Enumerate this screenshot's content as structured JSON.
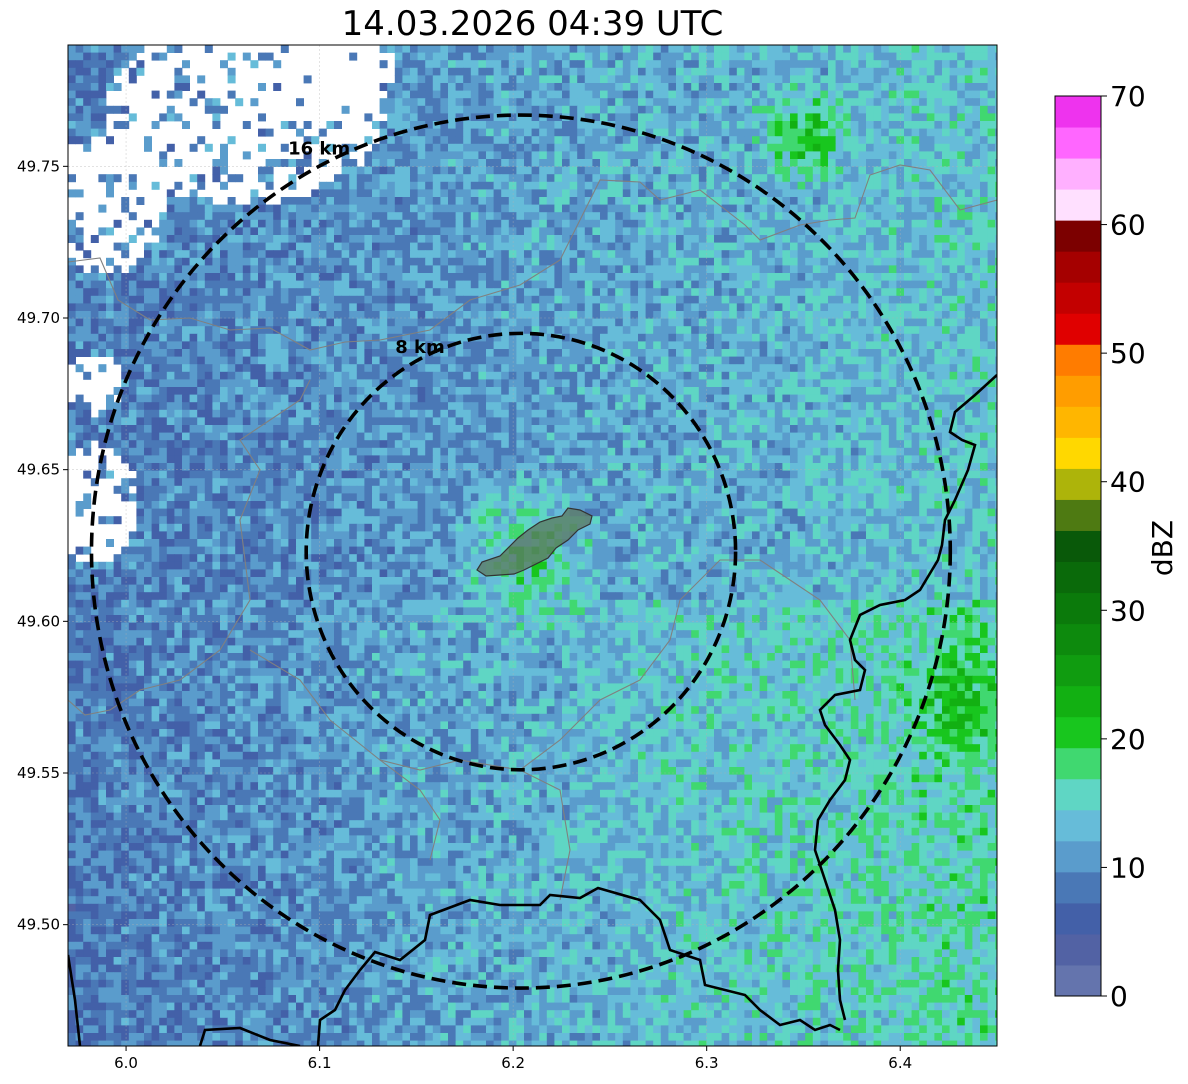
{
  "title": "14.03.2026 04:39 UTC",
  "map": {
    "lon_range": [
      5.97,
      6.45
    ],
    "lat_range": [
      49.46,
      49.79
    ],
    "x_ticks": [
      {
        "value": 6.0,
        "label": "6.0"
      },
      {
        "value": 6.1,
        "label": "6.1"
      },
      {
        "value": 6.2,
        "label": "6.2"
      },
      {
        "value": 6.3,
        "label": "6.3"
      },
      {
        "value": 6.4,
        "label": "6.4"
      }
    ],
    "y_ticks": [
      {
        "value": 49.5,
        "label": "49.50"
      },
      {
        "value": 49.55,
        "label": "49.55"
      },
      {
        "value": 49.6,
        "label": "49.60"
      },
      {
        "value": 49.65,
        "label": "49.65"
      },
      {
        "value": 49.7,
        "label": "49.70"
      },
      {
        "value": 49.75,
        "label": "49.75"
      }
    ],
    "grid": true,
    "center": {
      "lon": 6.204,
      "lat": 49.623
    },
    "rings": [
      {
        "radius_km": 8,
        "label": "8 km"
      },
      {
        "radius_km": 16,
        "label": "16 km"
      }
    ]
  },
  "colorbar": {
    "label": "dBZ",
    "min": 0,
    "max": 70,
    "tick_labels": [
      {
        "value": 0,
        "label": "0"
      },
      {
        "value": 10,
        "label": "10"
      },
      {
        "value": 20,
        "label": "20"
      },
      {
        "value": 30,
        "label": "30"
      },
      {
        "value": 40,
        "label": "40"
      },
      {
        "value": 50,
        "label": "50"
      },
      {
        "value": 60,
        "label": "60"
      },
      {
        "value": 70,
        "label": "70"
      }
    ],
    "colors": [
      "#6474ad",
      "#5262a4",
      "#4360a8",
      "#4a78b6",
      "#5a9ccc",
      "#66bcd9",
      "#5fd6c4",
      "#40d870",
      "#18c61e",
      "#12b012",
      "#109c10",
      "#0d8a0d",
      "#0b7a0b",
      "#0a6a0a",
      "#095909",
      "#4e7a12",
      "#adb40a",
      "#ffd800",
      "#ffb600",
      "#ff9d00",
      "#ff7c00",
      "#e00000",
      "#c30000",
      "#a50000",
      "#7c0000",
      "#ffe0ff",
      "#ffb0ff",
      "#ff66ff",
      "#ee33ee"
    ]
  }
}
